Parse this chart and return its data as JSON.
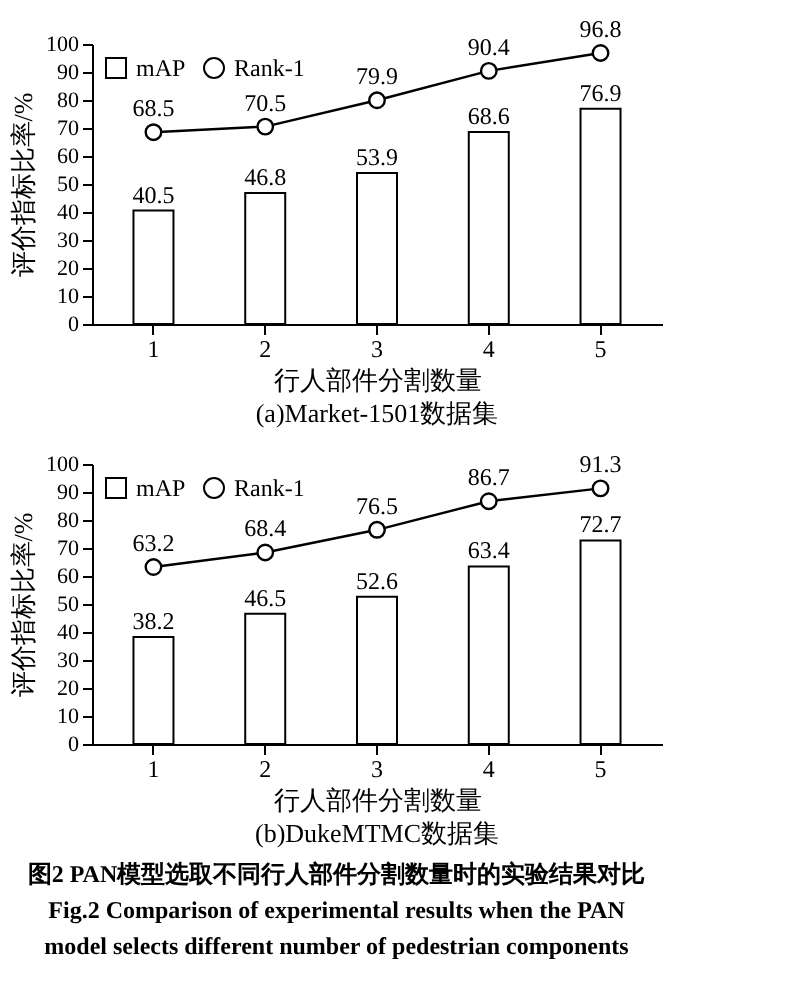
{
  "chart_data": [
    {
      "type": "bar",
      "title": "(a)Market-1501数据集",
      "xlabel": "行人部件分割数量",
      "ylabel": "评价指标比率/%",
      "categories": [
        "1",
        "2",
        "3",
        "4",
        "5"
      ],
      "series": [
        {
          "name": "mAP",
          "color": "#ffffff",
          "values": [
            40.5,
            46.8,
            53.9,
            68.6,
            76.9
          ]
        },
        {
          "name": "Rank-1",
          "type": "line",
          "color": "#000000",
          "values": [
            68.5,
            70.5,
            79.9,
            90.4,
            96.8
          ]
        }
      ],
      "ylim": [
        0,
        100
      ],
      "yticks": [
        0,
        10,
        20,
        30,
        40,
        50,
        60,
        70,
        80,
        90,
        100
      ],
      "grid": false,
      "legend": "top left",
      "marker": "circle",
      "line_style": "solid",
      "data_labels": true
    },
    {
      "type": "bar",
      "title": "(b)DukeMTMC数据集",
      "xlabel": "行人部件分割数量",
      "ylabel": "评价指标比率/%",
      "categories": [
        "1",
        "2",
        "3",
        "4",
        "5"
      ],
      "series": [
        {
          "name": "mAP",
          "color": "#ffffff",
          "values": [
            38.2,
            46.5,
            52.6,
            63.4,
            72.7
          ]
        },
        {
          "name": "Rank-1",
          "type": "line",
          "color": "#000000",
          "values": [
            63.2,
            68.4,
            76.5,
            86.7,
            91.3
          ]
        }
      ],
      "ylim": [
        0,
        100
      ],
      "yticks": [
        0,
        10,
        20,
        30,
        40,
        50,
        60,
        70,
        80,
        90,
        100
      ],
      "grid": false,
      "legend": "top left",
      "marker": "circle",
      "line_style": "solid",
      "data_labels": true,
      "annotations": [
        "图2  PAN模型选取不同行人部件分割数量时的实验结果对比",
        "Fig.2   Comparison of experimental results when the PAN",
        "model selects different number of pedestrian components"
      ]
    }
  ]
}
